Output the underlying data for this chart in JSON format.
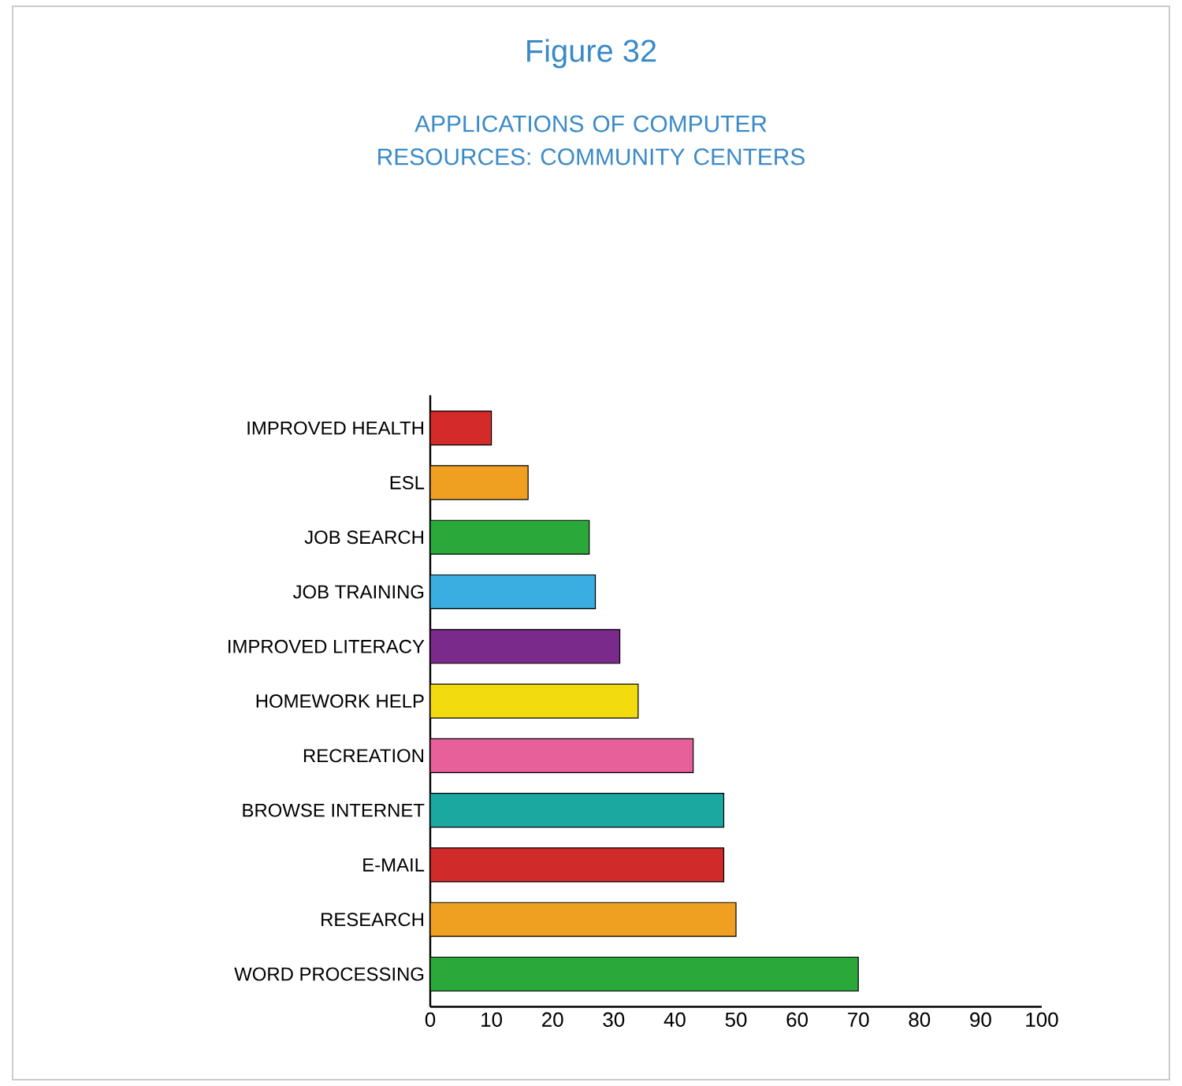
{
  "chart_data": {
    "type": "bar",
    "orientation": "horizontal",
    "title": "Figure 32",
    "subtitle": "APPLICATIONS OF COMPUTER RESOURCES: COMMUNITY CENTERS",
    "categories": [
      "IMPROVED HEALTH",
      "ESL",
      "JOB SEARCH",
      "JOB TRAINING",
      "IMPROVED LITERACY",
      "HOMEWORK HELP",
      "RECREATION",
      "BROWSE INTERNET",
      "E-MAIL",
      "RESEARCH",
      "WORD PROCESSING"
    ],
    "values": [
      10,
      16,
      26,
      27,
      31,
      34,
      43,
      48,
      48,
      50,
      70
    ],
    "colors": [
      "#d42a2a",
      "#f0a020",
      "#2aa83a",
      "#3aaee0",
      "#7a2a8a",
      "#f2dc10",
      "#e8609a",
      "#1aa8a0",
      "#d02a2a",
      "#f0a020",
      "#2aa83a"
    ],
    "xlim": [
      0,
      100
    ],
    "xticks": [
      0,
      10,
      20,
      30,
      40,
      50,
      60,
      70,
      80,
      90,
      100
    ]
  }
}
